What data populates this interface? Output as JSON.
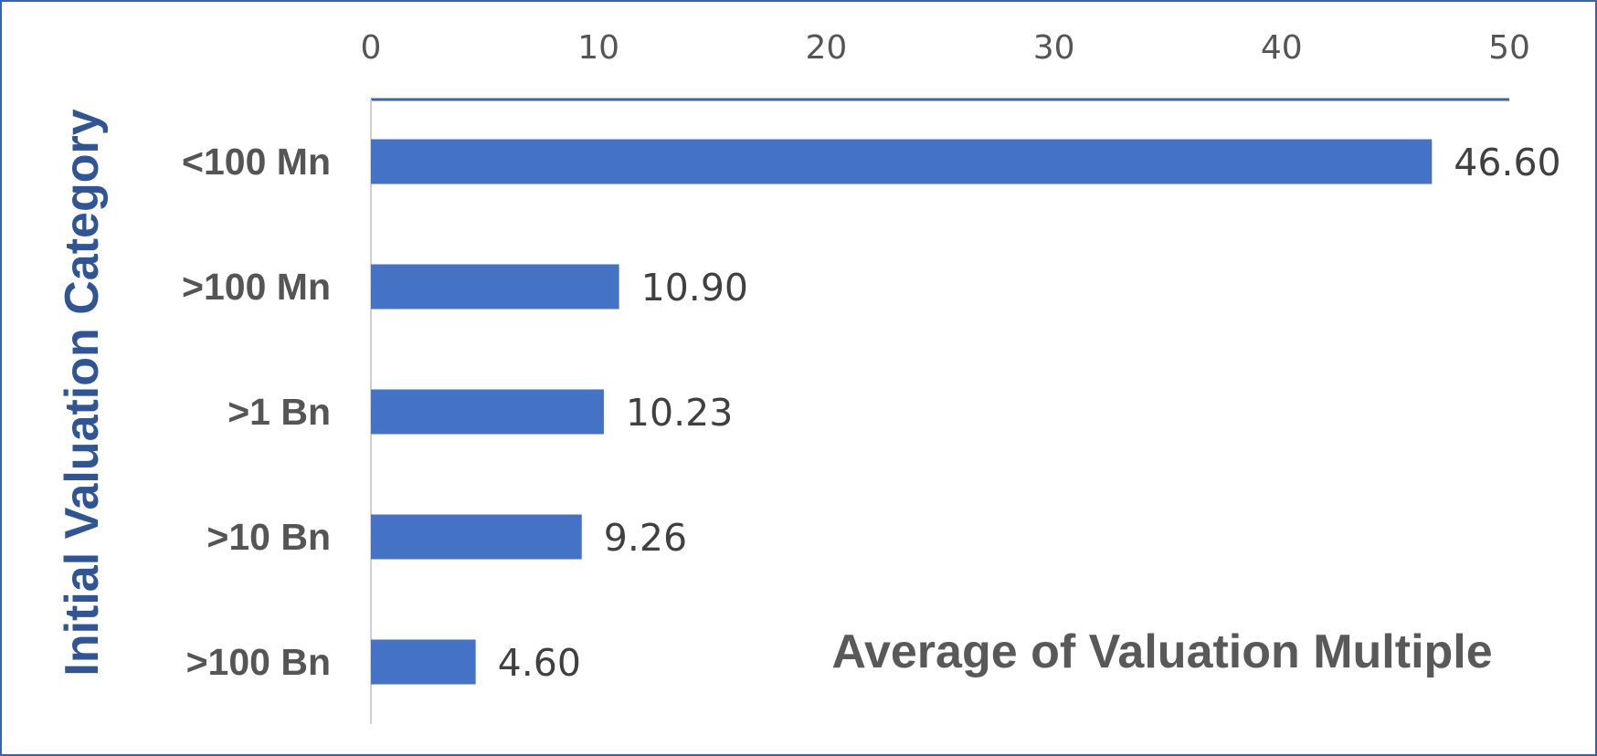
{
  "chart_data": {
    "type": "bar",
    "orientation": "horizontal",
    "title": "Average of Valuation Multiple",
    "ylabel": "Initial Valuation Category",
    "xlabel": "",
    "categories": [
      "<100 Mn",
      ">100 Mn",
      ">1 Bn",
      ">10 Bn",
      ">100 Bn"
    ],
    "values": [
      46.6,
      10.9,
      10.23,
      9.26,
      4.6
    ],
    "data_labels": [
      "46.60",
      "10.90",
      "10.23",
      "9.26",
      "4.60"
    ],
    "xlim": [
      0,
      50
    ],
    "x_ticks": [
      "0",
      "10",
      "20",
      "30",
      "40",
      "50"
    ],
    "x_axis_position": "top",
    "grid": false,
    "bar_color": "#4472c4",
    "axis_title_color": "#2f5597",
    "border_color": "#3b63ad"
  }
}
